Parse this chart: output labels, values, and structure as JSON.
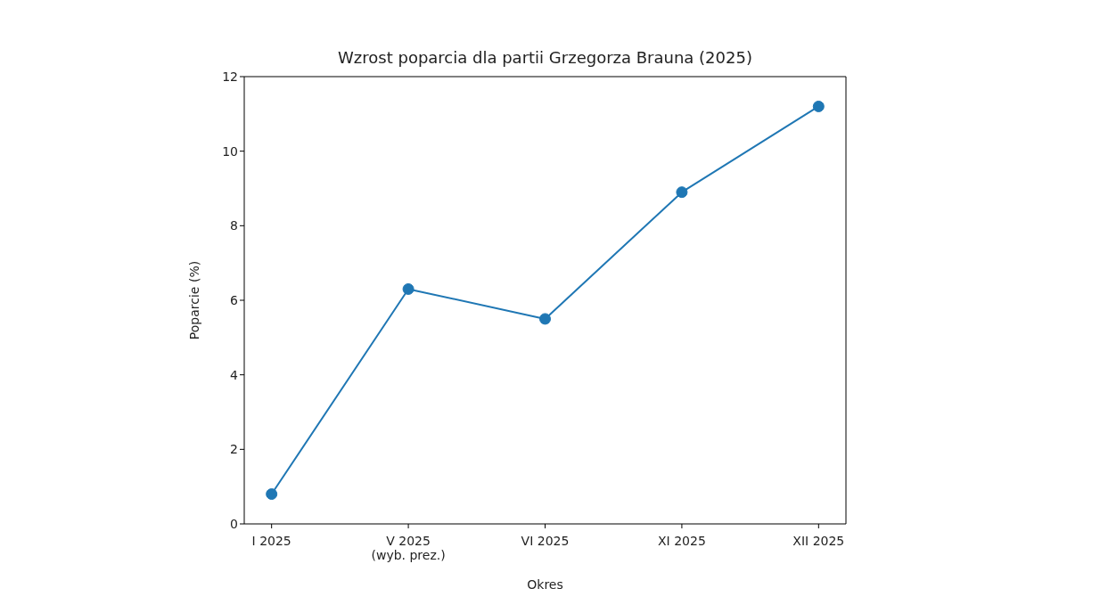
{
  "chart_data": {
    "type": "line",
    "title": "Wzrost poparcia dla partii Grzegorza Brauna (2025)",
    "xlabel": "Okres",
    "ylabel": "Poparcie (%)",
    "categories": [
      "I 2025",
      "V 2025\n(wyb. prez.)",
      "VI 2025",
      "XI 2025",
      "XII 2025"
    ],
    "series": [
      {
        "color": "#1f77b4",
        "values": [
          0.8,
          6.3,
          5.5,
          8.9,
          11.2
        ]
      }
    ],
    "ylim": [
      0,
      12
    ],
    "yticks": [
      0,
      2,
      4,
      6,
      8,
      10,
      12
    ],
    "grid": false,
    "marker": "circle",
    "line_style": "solid"
  }
}
